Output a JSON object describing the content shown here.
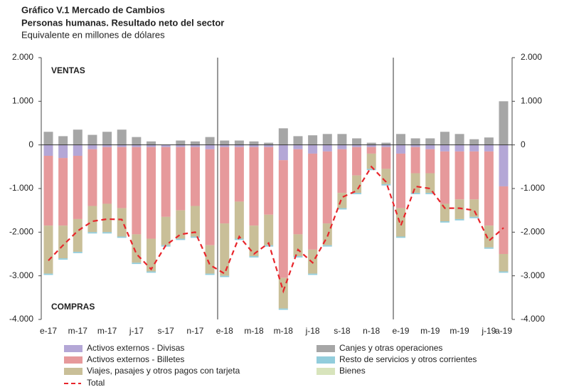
{
  "chart_data": {
    "type": "bar",
    "title": "Gráfico V.1 Mercado de Cambios",
    "subtitle": "Personas humanas. Resultado neto del sector",
    "y_label": "Equivalente en millones de dólares",
    "annotations": [
      "VENTAS",
      "COMPRAS"
    ],
    "categories": [
      "e-17",
      null,
      "m-17",
      null,
      "m-17",
      null,
      "j-17",
      null,
      "s-17",
      null,
      "n-17",
      null,
      "e-18",
      null,
      "m-18",
      null,
      "m-18",
      null,
      "j-18",
      null,
      "s-18",
      null,
      "n-18",
      null,
      "e-19",
      null,
      "m-19",
      null,
      "m-19",
      null,
      "j-19",
      "a-19"
    ],
    "series": [
      {
        "name": "Activos externos - Divisas",
        "color": "#b4a7d6",
        "values": [
          -250,
          -300,
          -250,
          -100,
          -50,
          -50,
          -50,
          -50,
          -50,
          -50,
          -50,
          -100,
          -50,
          -50,
          -50,
          -50,
          -350,
          -100,
          -200,
          -150,
          -100,
          -50,
          -50,
          -50,
          -200,
          -50,
          -100,
          -150,
          -150,
          -150,
          -150,
          -950
        ]
      },
      {
        "name": "Activos externos - Billetes",
        "color": "#e6999b",
        "values": [
          -1600,
          -1550,
          -1450,
          -1300,
          -1300,
          -1400,
          -2000,
          -2100,
          -1600,
          -1450,
          -1350,
          -2200,
          -1750,
          -1250,
          -1800,
          -1550,
          -2700,
          -1950,
          -2200,
          -1650,
          -1000,
          -650,
          -150,
          -500,
          -1250,
          -600,
          -550,
          -1200,
          -1100,
          -1100,
          -1700,
          -1550
        ]
      },
      {
        "name": "Viajes, pasajes y otros pagos con tarjeta",
        "color": "#c9bf98",
        "values": [
          -1100,
          -750,
          -750,
          -600,
          -650,
          -650,
          -650,
          -750,
          -650,
          -650,
          -700,
          -650,
          -1200,
          -850,
          -700,
          -700,
          -700,
          -500,
          -550,
          -500,
          -350,
          -400,
          -350,
          -350,
          -650,
          -450,
          -450,
          -400,
          -450,
          -400,
          -500,
          -400
        ]
      },
      {
        "name": "Canjes y otras operaciones",
        "color": "#a6a6a6",
        "values": [
          300,
          200,
          350,
          230,
          300,
          350,
          180,
          80,
          0,
          100,
          80,
          180,
          100,
          100,
          80,
          50,
          380,
          200,
          220,
          250,
          250,
          150,
          50,
          50,
          250,
          150,
          150,
          300,
          250,
          130,
          170,
          1000
        ]
      },
      {
        "name": "Resto de servicios y otros corrientes",
        "color": "#92cddc",
        "values": [
          -30,
          -30,
          -30,
          -30,
          -30,
          -30,
          -30,
          -30,
          -30,
          -30,
          -30,
          -30,
          -30,
          -30,
          -30,
          -30,
          -30,
          -30,
          -30,
          -30,
          -30,
          -30,
          -30,
          -30,
          -30,
          -30,
          -30,
          -30,
          -30,
          -30,
          -30,
          -30
        ]
      },
      {
        "name": "Bienes",
        "color": "#d8e4bc",
        "values": [
          0,
          0,
          0,
          0,
          0,
          0,
          0,
          0,
          0,
          0,
          0,
          0,
          0,
          0,
          0,
          0,
          0,
          0,
          0,
          0,
          0,
          0,
          0,
          0,
          0,
          0,
          0,
          0,
          0,
          0,
          0,
          0
        ]
      },
      {
        "name": "Total",
        "color": "#e8252b",
        "type": "line",
        "values": [
          -2650,
          -2300,
          -1970,
          -1750,
          -1700,
          -1710,
          -2500,
          -2850,
          -2300,
          -2050,
          -2000,
          -2750,
          -2950,
          -2100,
          -2500,
          -2250,
          -3350,
          -2400,
          -2700,
          -2100,
          -1200,
          -1050,
          -500,
          -850,
          -1850,
          -950,
          -1000,
          -1450,
          -1450,
          -1500,
          -2200,
          -1900
        ]
      }
    ],
    "ylim": [
      -4000,
      2000
    ],
    "yticks": [
      {
        "value": -4000,
        "label": "-4.000"
      },
      {
        "value": -3000,
        "label": "-3.000"
      },
      {
        "value": -2000,
        "label": "-2.000"
      },
      {
        "value": -1000,
        "label": "-1.000"
      },
      0,
      {
        "value": 1000,
        "label": "1.000"
      },
      {
        "value": 2000,
        "label": "2.000"
      }
    ],
    "y2lim": [
      -4000,
      2000
    ],
    "y2ticks": [
      {
        "value": -4000,
        "label": "-4.000"
      },
      {
        "value": -3000,
        "label": "-3.000"
      },
      {
        "value": -2000,
        "label": "-2.000"
      },
      {
        "value": -1000,
        "label": "-1.000"
      },
      0,
      {
        "value": 1000,
        "label": "1.000"
      },
      {
        "value": 2000,
        "label": "2.000"
      }
    ],
    "grid": false
  }
}
